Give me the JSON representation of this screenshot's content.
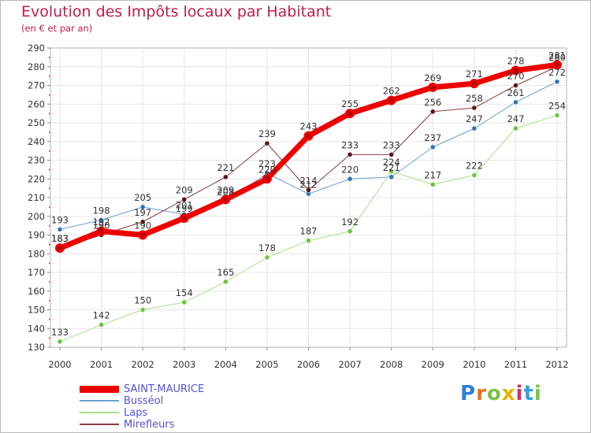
{
  "chart_data": {
    "type": "line",
    "title": "Evolution des Impôts locaux par Habitant",
    "subtitle": "(en € et par an)",
    "xlabel": "",
    "ylabel": "",
    "x": [
      "2000",
      "2001",
      "2002",
      "2003",
      "2004",
      "2005",
      "2006",
      "2007",
      "2008",
      "2009",
      "2010",
      "2011",
      "2012"
    ],
    "ylim": [
      130,
      290
    ],
    "yticks": [
      130,
      140,
      150,
      160,
      170,
      180,
      190,
      200,
      210,
      220,
      230,
      240,
      250,
      260,
      270,
      280,
      290
    ],
    "grid": true,
    "legend_position": "bottom-left",
    "series": [
      {
        "name": "Busséol",
        "color": "#6b9fd0",
        "marker": "#2f74b5",
        "width": 1,
        "values": [
          193,
          198,
          205,
          201,
          208,
          223,
          212,
          220,
          221,
          237,
          247,
          261,
          272
        ]
      },
      {
        "name": "Laps",
        "color": "#a9e08a",
        "marker": "#6cc43e",
        "width": 1,
        "values": [
          133,
          142,
          150,
          154,
          165,
          178,
          187,
          192,
          224,
          217,
          222,
          247,
          254
        ]
      },
      {
        "name": "Mirefleurs",
        "color": "#8b3a3f",
        "marker": "#5a1414",
        "width": 1,
        "values": [
          183,
          190,
          197,
          209,
          221,
          239,
          214,
          233,
          233,
          256,
          258,
          270,
          280
        ]
      },
      {
        "name": "SAINT-MAURICE",
        "color": "#ee0000",
        "marker": "#ee0000",
        "width": 7,
        "values": [
          183,
          192,
          190,
          199,
          209,
          220,
          243,
          255,
          262,
          269,
          271,
          278,
          281
        ]
      }
    ]
  },
  "brand": {
    "logo_text": "Proxiti",
    "letter_colors": [
      "#2f80d8",
      "#e6701f",
      "#7cc243",
      "#e9b100",
      "#d2306d",
      "#2fa3df",
      "#7cc243"
    ]
  }
}
